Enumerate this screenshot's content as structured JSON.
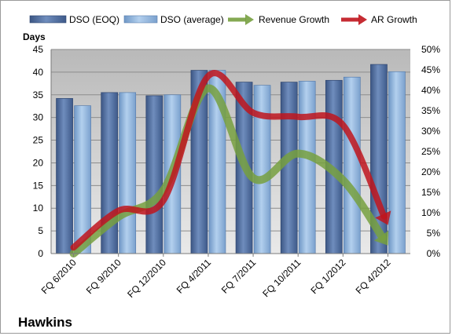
{
  "chart_data": {
    "type": "bar",
    "subtype": "bar-line-combo",
    "company": "Hawkins",
    "y_axis_title": "Days",
    "categories": [
      "FQ 6/2010",
      "FQ 9/2010",
      "FQ 12/2010",
      "FQ 4/2011",
      "FQ 7/2011",
      "FQ 10/2011",
      "FQ 1/2012",
      "FQ 4/2012"
    ],
    "bar_series": [
      {
        "name": "DSO (EOQ)",
        "axis": "left",
        "color": "#4f6fa3",
        "values": [
          34.2,
          35.5,
          34.8,
          40.4,
          37.8,
          37.8,
          38.2,
          41.7
        ]
      },
      {
        "name": "DSO (average)",
        "axis": "left",
        "color": "#8fb4dd",
        "values": [
          32.6,
          35.5,
          35.0,
          40.4,
          37.1,
          38.0,
          38.9,
          40.1
        ]
      }
    ],
    "line_series": [
      {
        "name": "Revenue Growth",
        "axis": "right",
        "color": "#77a040",
        "unit": "%",
        "values": [
          0.0,
          9.0,
          15.5,
          40.5,
          18.5,
          24.5,
          18.0,
          2.0
        ]
      },
      {
        "name": "AR Growth",
        "axis": "right",
        "color": "#c0151d",
        "unit": "%",
        "values": [
          1.5,
          10.5,
          13.0,
          43.5,
          34.5,
          33.5,
          31.5,
          7.0
        ]
      }
    ],
    "left_axis": {
      "min": 0,
      "max": 45,
      "step": 5,
      "ticks": [
        "0",
        "5",
        "10",
        "15",
        "20",
        "25",
        "30",
        "35",
        "40",
        "45"
      ]
    },
    "right_axis": {
      "min": 0,
      "max": 50,
      "step": 5,
      "ticks": [
        "0%",
        "5%",
        "10%",
        "15%",
        "20%",
        "25%",
        "30%",
        "35%",
        "40%",
        "45%",
        "50%"
      ]
    },
    "grid": true,
    "legend_position": "top"
  }
}
